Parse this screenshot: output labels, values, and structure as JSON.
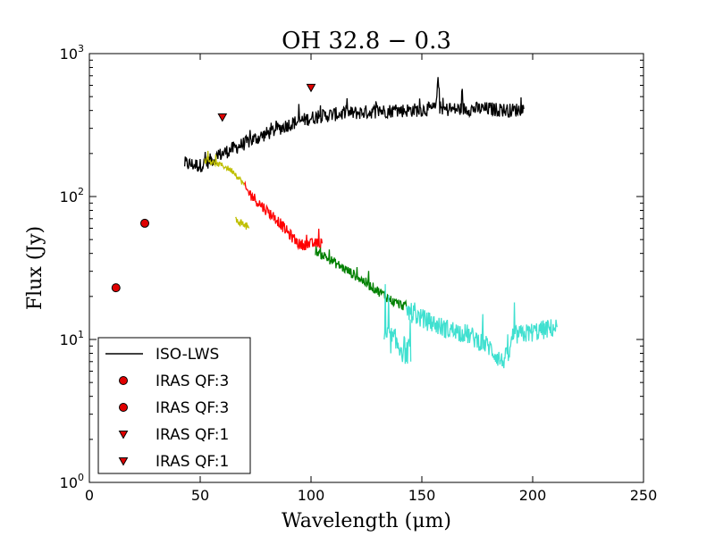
{
  "chart_data": {
    "type": "line",
    "title": "OH 32.8 − 0.3",
    "xlabel": "Wavelength (μm)",
    "ylabel": "Flux (Jy)",
    "xscale": "linear",
    "yscale": "log",
    "xlim": [
      0,
      250
    ],
    "ylim": [
      1,
      1000
    ],
    "x_ticks": [
      0,
      50,
      100,
      150,
      200,
      250
    ],
    "x_tick_labels": [
      "0",
      "50",
      "100",
      "150",
      "200",
      "250"
    ],
    "y_ticks": [
      1,
      10,
      100,
      1000
    ],
    "y_tick_labels": [
      {
        "base": "10",
        "exp": "0"
      },
      {
        "base": "10",
        "exp": "1"
      },
      {
        "base": "10",
        "exp": "2"
      },
      {
        "base": "10",
        "exp": "3"
      }
    ],
    "legend_position": "lower-left",
    "legend": [
      {
        "label": "ISO-LWS",
        "marker": "line",
        "color": "#000000"
      },
      {
        "label": "IRAS QF:3",
        "marker": "circle",
        "color": "#e00000"
      },
      {
        "label": "IRAS QF:3",
        "marker": "circle",
        "color": "#e00000"
      },
      {
        "label": "IRAS QF:1",
        "marker": "triangle-down",
        "color": "#e00000"
      },
      {
        "label": "IRAS QF:1",
        "marker": "triangle-down",
        "color": "#e00000"
      }
    ],
    "series": [
      {
        "name": "ISO-LWS",
        "color": "#000000",
        "noise": 0.05,
        "points": [
          [
            43,
            170
          ],
          [
            50,
            165
          ],
          [
            55,
            180
          ],
          [
            60,
            200
          ],
          [
            70,
            235
          ],
          [
            80,
            275
          ],
          [
            90,
            320
          ],
          [
            100,
            355
          ],
          [
            110,
            375
          ],
          [
            120,
            385
          ],
          [
            130,
            395
          ],
          [
            140,
            400
          ],
          [
            150,
            405
          ],
          [
            155,
            410
          ],
          [
            156.5,
            420
          ],
          [
            157.3,
            760
          ],
          [
            158.1,
            420
          ],
          [
            160,
            405
          ],
          [
            170,
            410
          ],
          [
            180,
            410
          ],
          [
            190,
            400
          ],
          [
            196,
            410
          ]
        ]
      },
      {
        "name": "spectrum-yellow",
        "color": "#bfbf00",
        "noise": 0.02,
        "points": [
          [
            52,
            180
          ],
          [
            60,
            165
          ],
          [
            65,
            150
          ],
          [
            70,
            120
          ]
        ]
      },
      {
        "name": "spectrum-yellow-segment",
        "color": "#bfbf00",
        "noise": 0.03,
        "points": [
          [
            66,
            68
          ],
          [
            68,
            66
          ],
          [
            70,
            63
          ],
          [
            72,
            60
          ]
        ]
      },
      {
        "name": "spectrum-red",
        "color": "#ff0000",
        "noise": 0.04,
        "points": [
          [
            70,
            115
          ],
          [
            75,
            95
          ],
          [
            80,
            80
          ],
          [
            85,
            68
          ],
          [
            90,
            55
          ],
          [
            95,
            46
          ],
          [
            105,
            47
          ]
        ]
      },
      {
        "name": "spectrum-green",
        "color": "#008000",
        "noise": 0.035,
        "points": [
          [
            102,
            42
          ],
          [
            110,
            35
          ],
          [
            120,
            28
          ],
          [
            130,
            22
          ],
          [
            138,
            18
          ],
          [
            143,
            17
          ]
        ]
      },
      {
        "name": "spectrum-turquoise",
        "color": "#40e0d0",
        "noise": 0.07,
        "points": [
          [
            143,
            16
          ],
          [
            150,
            14
          ],
          [
            160,
            12
          ],
          [
            170,
            11
          ],
          [
            180,
            9
          ],
          [
            186,
            7
          ],
          [
            190,
            8
          ],
          [
            190.5,
            10.5
          ],
          [
            211,
            12.2
          ]
        ]
      },
      {
        "name": "spectrum-turquoise-segment",
        "color": "#40e0d0",
        "noise": 0.1,
        "points": [
          [
            133,
            10.5
          ],
          [
            136,
            10
          ],
          [
            140,
            9
          ],
          [
            144,
            8
          ],
          [
            145,
            7
          ]
        ]
      }
    ],
    "markers": [
      {
        "name": "IRAS QF:3 12um",
        "marker": "circle",
        "x": 12,
        "y": 23,
        "color": "#e00000"
      },
      {
        "name": "IRAS QF:3 25um",
        "marker": "circle",
        "x": 25,
        "y": 65,
        "color": "#e00000"
      },
      {
        "name": "IRAS QF:1 60um",
        "marker": "triangle-down",
        "x": 60,
        "y": 360,
        "color": "#e00000"
      },
      {
        "name": "IRAS QF:1 100um",
        "marker": "triangle-down",
        "x": 100,
        "y": 580,
        "color": "#e00000"
      }
    ]
  }
}
